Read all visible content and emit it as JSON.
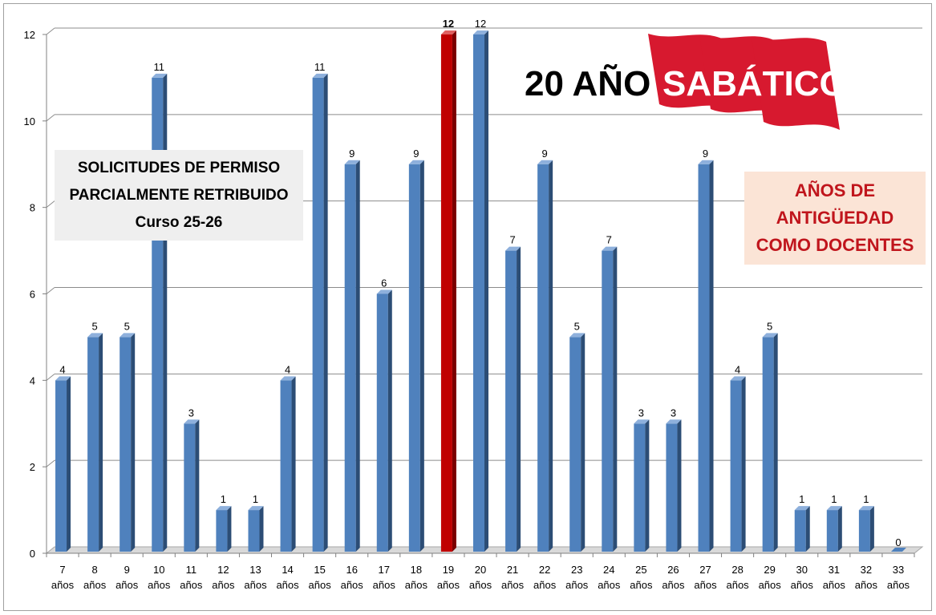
{
  "chart_data": {
    "type": "bar",
    "categories": [
      "7 años",
      "8 años",
      "9 años",
      "10 años",
      "11 años",
      "12 años",
      "13 años",
      "14 años",
      "15 años",
      "16 años",
      "17 años",
      "18 años",
      "19 años",
      "20 años",
      "21 años",
      "22 años",
      "23 años",
      "24 años",
      "25 años",
      "26 años",
      "27 años",
      "28 años",
      "29 años",
      "30 años",
      "31 años",
      "32 años",
      "33 años"
    ],
    "category_lines": [
      [
        "7",
        "años"
      ],
      [
        "8",
        "años"
      ],
      [
        "9",
        "años"
      ],
      [
        "10",
        "años"
      ],
      [
        "11",
        "años"
      ],
      [
        "12",
        "años"
      ],
      [
        "13",
        "años"
      ],
      [
        "14",
        "años"
      ],
      [
        "15",
        "años"
      ],
      [
        "16",
        "años"
      ],
      [
        "17",
        "años"
      ],
      [
        "18",
        "años"
      ],
      [
        "19",
        "años"
      ],
      [
        "20",
        "años"
      ],
      [
        "21",
        "años"
      ],
      [
        "22",
        "años"
      ],
      [
        "23",
        "años"
      ],
      [
        "24",
        "años"
      ],
      [
        "25",
        "años"
      ],
      [
        "26",
        "años"
      ],
      [
        "27",
        "años"
      ],
      [
        "28",
        "años"
      ],
      [
        "29",
        "años"
      ],
      [
        "30",
        "años"
      ],
      [
        "31",
        "años"
      ],
      [
        "32",
        "años"
      ],
      [
        "33",
        "años"
      ]
    ],
    "values": [
      4,
      5,
      5,
      11,
      3,
      1,
      1,
      4,
      11,
      9,
      6,
      9,
      12,
      12,
      7,
      9,
      5,
      7,
      3,
      3,
      9,
      4,
      5,
      1,
      1,
      1,
      0
    ],
    "highlight_category": "19 años",
    "ylim": [
      0,
      12
    ],
    "yticks": [
      0,
      2,
      4,
      6,
      8,
      10,
      12
    ],
    "grid": true,
    "colors": {
      "bar": "#4f81bd",
      "bar_side": "#2c4d75",
      "bar_top": "#8eb0dc",
      "highlight": "#c00000",
      "highlight_side": "#7a0000",
      "highlight_top": "#e06060",
      "gridline": "#8c8c8c"
    }
  },
  "info_box": {
    "lines": [
      "SOLICITUDES DE PERMISO",
      "PARCIALMENTE RETRIBUIDO",
      "Curso 25-26"
    ]
  },
  "legend_box": {
    "lines": [
      "AÑOS DE",
      "ANTIGÜEDAD",
      "COMO DOCENTES"
    ]
  },
  "banner": {
    "prefix": "20 AÑO",
    "title": "SABÁTICO",
    "flag_color": "#d7192f"
  }
}
